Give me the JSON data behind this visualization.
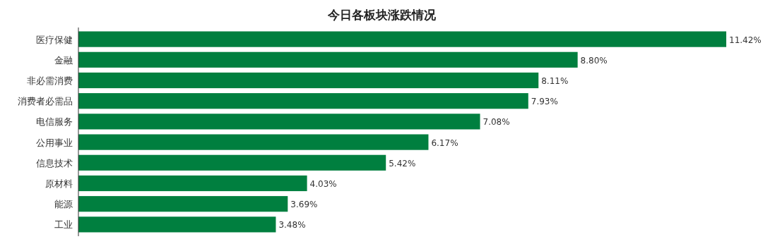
{
  "chart_data": {
    "type": "bar",
    "orientation": "horizontal",
    "title": "今日各板块涨跌情况",
    "categories": [
      "医疗保健",
      "金融",
      "非必需消费",
      "消费者必需品",
      "电信服务",
      "公用事业",
      "信息技术",
      "原材料",
      "能源",
      "工业"
    ],
    "values": [
      11.42,
      8.8,
      8.11,
      7.93,
      7.08,
      6.17,
      5.42,
      4.03,
      3.69,
      3.48
    ],
    "value_labels": [
      "11.42%",
      "8.80%",
      "8.11%",
      "7.93%",
      "7.08%",
      "6.17%",
      "5.42%",
      "4.03%",
      "3.69%",
      "3.48%"
    ],
    "color": "#007f3f"
  }
}
